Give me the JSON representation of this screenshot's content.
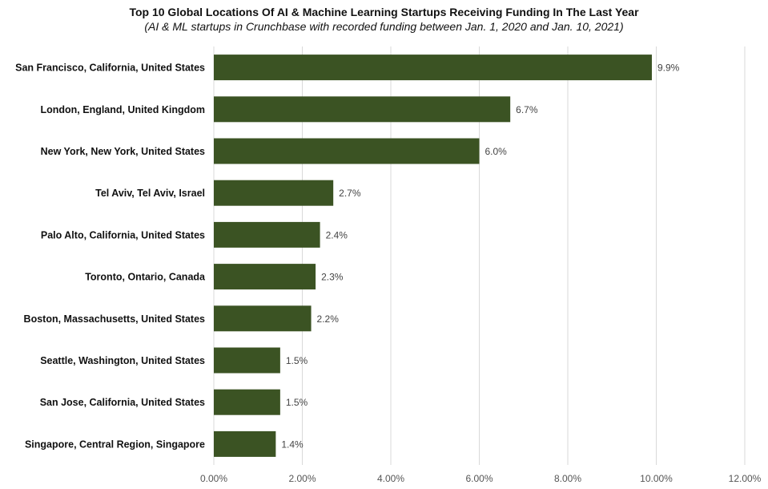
{
  "chart_data": {
    "type": "bar",
    "orientation": "horizontal",
    "title": "Top 10 Global Locations Of AI & Machine Learning Startups Receiving Funding In The Last Year",
    "subtitle": "(AI & ML startups in Crunchbase with recorded funding between Jan. 1, 2020 and Jan. 10, 2021)",
    "categories": [
      "San Francisco, California, United States",
      "London, England, United Kingdom",
      "New York, New York, United States",
      "Tel Aviv, Tel Aviv, Israel",
      "Palo Alto, California, United States",
      "Toronto, Ontario, Canada",
      "Boston, Massachusetts, United States",
      "Seattle, Washington, United States",
      "San Jose, California, United States",
      "Singapore, Central Region, Singapore"
    ],
    "values": [
      9.9,
      6.7,
      6.0,
      2.7,
      2.4,
      2.3,
      2.2,
      1.5,
      1.5,
      1.4
    ],
    "value_labels": [
      "9.9%",
      "6.7%",
      "6.0%",
      "2.7%",
      "2.4%",
      "2.3%",
      "2.2%",
      "1.5%",
      "1.5%",
      "1.4%"
    ],
    "xlim": [
      0,
      12
    ],
    "x_ticks": [
      0,
      2,
      4,
      6,
      8,
      10,
      12
    ],
    "x_tick_labels": [
      "0.00%",
      "2.00%",
      "4.00%",
      "6.00%",
      "8.00%",
      "10.00%",
      "12.00%"
    ],
    "grid": "vertical",
    "bar_color": "#3b5323",
    "grid_color": "#d9d9d9"
  }
}
